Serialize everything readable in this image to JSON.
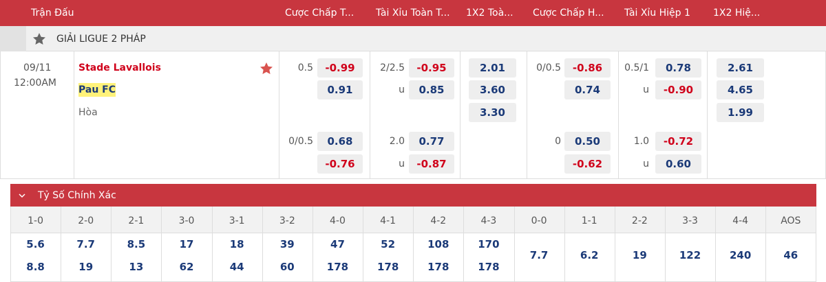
{
  "header": {
    "match_column": "Trận Đấu",
    "columns": [
      "Cược Chấp T...",
      "Tài Xỉu Toàn T...",
      "1X2 Toà...",
      "Cược Chấp H...",
      "Tài Xỉu Hiệp 1",
      "1X2 Hiệ..."
    ]
  },
  "league": {
    "name": "GIẢI LIGUE 2 PHÁP"
  },
  "match": {
    "date": "09/11",
    "time": "12:00AM",
    "home": "Stade Lavallois",
    "away": "Pau FC",
    "draw": "Hòa"
  },
  "odds": {
    "handicap_full": [
      {
        "line": "0.5",
        "home": "-0.99",
        "away": "0.91"
      },
      {
        "line": "0/0.5",
        "home": "0.68",
        "away": "-0.76"
      }
    ],
    "ou_full": [
      {
        "line": "2/2.5",
        "over": "-0.95",
        "under_label": "u",
        "under": "0.85"
      },
      {
        "line": "2.0",
        "over": "0.77",
        "under_label": "u",
        "under": "-0.87"
      }
    ],
    "x12_full": [
      "2.01",
      "3.60",
      "3.30"
    ],
    "handicap_half": [
      {
        "line": "0/0.5",
        "home": "-0.86",
        "away": "0.74"
      },
      {
        "line": "0",
        "home": "0.50",
        "away": "-0.62"
      }
    ],
    "ou_half": [
      {
        "line": "0.5/1",
        "over": "0.78",
        "under_label": "u",
        "under": "-0.90"
      },
      {
        "line": "1.0",
        "over": "-0.72",
        "under_label": "u",
        "under": "0.60"
      }
    ],
    "x12_half": [
      "2.61",
      "4.65",
      "1.99"
    ]
  },
  "correct_score": {
    "title": "Tỷ Số Chính Xác",
    "columns": [
      {
        "score": "1-0",
        "home": "5.6",
        "away": "8.8"
      },
      {
        "score": "2-0",
        "home": "7.7",
        "away": "19"
      },
      {
        "score": "2-1",
        "home": "8.5",
        "away": "13"
      },
      {
        "score": "3-0",
        "home": "17",
        "away": "62"
      },
      {
        "score": "3-1",
        "home": "18",
        "away": "44"
      },
      {
        "score": "3-2",
        "home": "39",
        "away": "60"
      },
      {
        "score": "4-0",
        "home": "47",
        "away": "178"
      },
      {
        "score": "4-1",
        "home": "52",
        "away": "178"
      },
      {
        "score": "4-2",
        "home": "108",
        "away": "178"
      },
      {
        "score": "4-3",
        "home": "170",
        "away": "178"
      },
      {
        "score": "0-0",
        "value": "7.7"
      },
      {
        "score": "1-1",
        "value": "6.2"
      },
      {
        "score": "2-2",
        "value": "19"
      },
      {
        "score": "3-3",
        "value": "122"
      },
      {
        "score": "4-4",
        "value": "240"
      },
      {
        "score": "AOS",
        "value": "46"
      }
    ]
  }
}
